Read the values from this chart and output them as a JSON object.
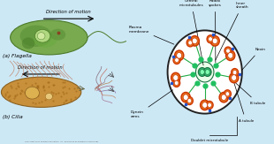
{
  "bg_color": "#cde8f5",
  "left_bg": "#e8e8e0",
  "title_a": "(a) Flagella",
  "title_b": "(b) Cilia",
  "motion_text": "Direction of motion",
  "copyright": "Copyright 2011 Pearson Education, Inc. publishing as Benjamin Cummings",
  "flagella_color": "#7aaa50",
  "flagella_edge": "#4a7a28",
  "cilia_color": "#c8903a",
  "cilia_edge": "#8a6020",
  "outer_circle_color": "#222222",
  "doublet_fill": "#e87820",
  "doublet_edge": "#cc3300",
  "central_fill": "#30b870",
  "central_edge": "#1a7040",
  "spoke_color": "#22aa44",
  "blue_dot_color": "#2255cc",
  "n_doublets": 9,
  "r_ring": 0.62
}
